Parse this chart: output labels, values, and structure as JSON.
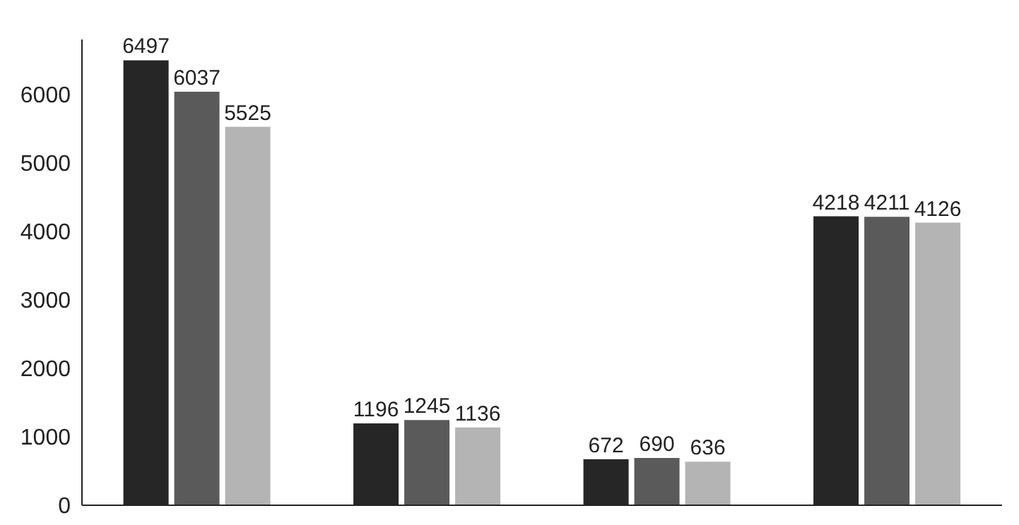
{
  "chart_data": {
    "type": "bar",
    "categories": [
      null,
      null,
      null,
      null
    ],
    "series": [
      {
        "color": "#262626",
        "values": [
          6497,
          1196,
          672,
          4218
        ]
      },
      {
        "color": "#5a5a5a",
        "values": [
          6037,
          1245,
          690,
          4211
        ]
      },
      {
        "color": "#b4b4b4",
        "values": [
          5525,
          1136,
          636,
          4126
        ]
      }
    ],
    "ylim": [
      0,
      6800
    ],
    "yticks": [
      0,
      1000,
      2000,
      3000,
      4000,
      5000,
      6000
    ],
    "data_labels": true,
    "grid": false,
    "legend": false,
    "tick_labels": "y"
  }
}
